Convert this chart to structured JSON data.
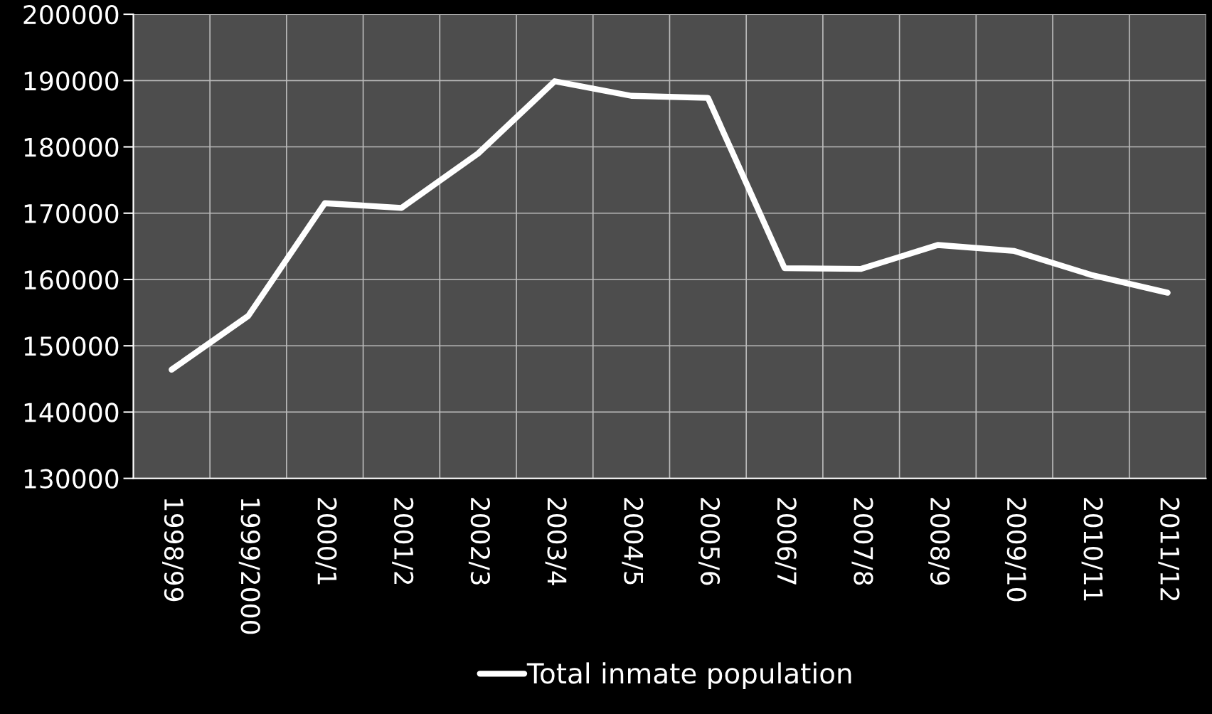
{
  "chart_data": {
    "type": "line",
    "categories": [
      "1998/99",
      "1999/2000",
      "2000/1",
      "2001/2",
      "2002/3",
      "2003/4",
      "2004/5",
      "2005/6",
      "2006/7",
      "2007/8",
      "2008/9",
      "2009/10",
      "2010/11",
      "2011/12"
    ],
    "series": [
      {
        "name": "Total inmate population",
        "color": "#ffffff",
        "values": [
          146400,
          154500,
          171500,
          170800,
          179000,
          189900,
          187700,
          187400,
          161700,
          161600,
          165200,
          164300,
          160700,
          158000
        ]
      }
    ],
    "ylim": [
      130000,
      200000
    ],
    "yticks": [
      130000,
      140000,
      150000,
      160000,
      170000,
      180000,
      190000,
      200000
    ],
    "grid": true,
    "legend": "bottom",
    "marker": "none",
    "line_style": "solid"
  }
}
